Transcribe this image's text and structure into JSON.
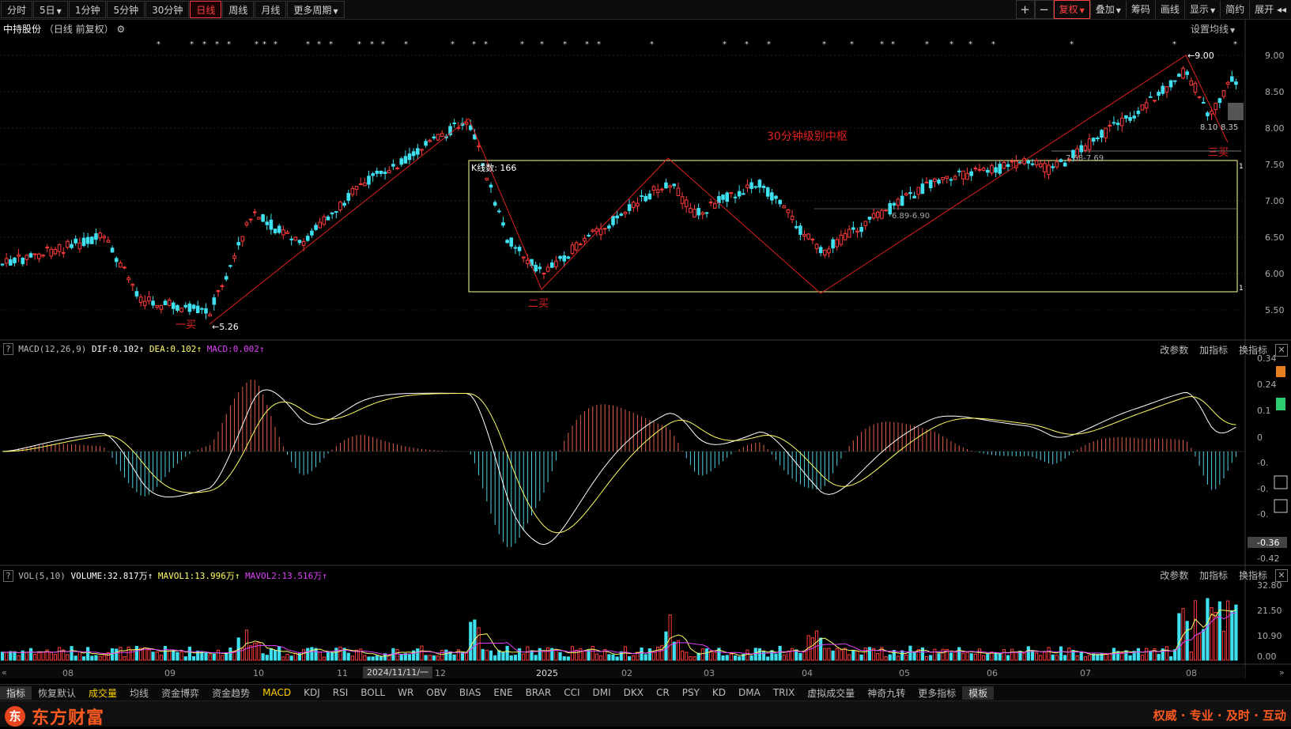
{
  "toolbar": {
    "periods": [
      "分时",
      "5日",
      "1分钟",
      "5分钟",
      "30分钟",
      "日线",
      "周线",
      "月线",
      "更多周期"
    ],
    "active_period": "日线",
    "right": [
      "复权",
      "叠加",
      "筹码",
      "画线",
      "显示",
      "简约",
      "展开"
    ],
    "plus": "+",
    "minus": "−"
  },
  "stock": {
    "name": "中持股份",
    "mode": "（日线 前复权）"
  },
  "set_ma": "设置均线",
  "annotations": {
    "zhongshu": "30分钟级别中枢",
    "k_count": "K线数: 166",
    "buy1": "一买",
    "buy2": "二买",
    "buy3": "三买",
    "low": "5.26",
    "high": "9.00",
    "range1": "6.89-6.90",
    "range2": "7.68-7.69",
    "cur_a": "8.10",
    "cur_b": "8.35",
    "box_tag": "1"
  },
  "price_axis": [
    "9.00",
    "8.50",
    "8.00",
    "7.50",
    "7.00",
    "6.50",
    "6.00",
    "5.50"
  ],
  "macd": {
    "title": "MACD(12,26,9)",
    "dif": "DIF:0.102",
    "dea": "DEA:0.102",
    "macd": "MACD:0.002",
    "axis": [
      "0.34",
      "0.24",
      "0.1",
      "0",
      "-0.",
      "-0.",
      "-0.",
      "-0.36",
      "-0.42"
    ]
  },
  "vol": {
    "title": "VOL(5,10)",
    "volume": "VOLUME:32.817万",
    "mavol1": "MAVOL1:13.996万",
    "mavol2": "MAVOL2:13.516万",
    "axis": [
      "32.80",
      "21.50",
      "10.90",
      "0.00"
    ]
  },
  "ind_tools": [
    "改参数",
    "加指标",
    "换指标"
  ],
  "date_axis": [
    "08",
    "09",
    "10",
    "11",
    "12",
    "2025",
    "02",
    "03",
    "04",
    "05",
    "06",
    "07",
    "08"
  ],
  "date_tip": "2024/11/11/一",
  "bottom_tabs": [
    "指标",
    "恢复默认",
    "成交量",
    "均线",
    "资金博弈",
    "资金趋势",
    "MACD",
    "KDJ",
    "RSI",
    "BOLL",
    "WR",
    "OBV",
    "BIAS",
    "ENE",
    "BRAR",
    "CCI",
    "DMI",
    "DKX",
    "CR",
    "PSY",
    "KD",
    "DMA",
    "TRIX",
    "虚拟成交量",
    "神奇九转",
    "更多指标",
    "模板"
  ],
  "footer": {
    "logo": "东",
    "brand": "东方财富",
    "slogan": "权威 · 专业 · 及时 · 互动"
  },
  "colors": {
    "up": "#ff3b3b",
    "down": "#3fe0f0",
    "dif": "#ffffff",
    "dea": "#ffff66",
    "ma2": "#e040fb",
    "box": "#ffff99"
  }
}
